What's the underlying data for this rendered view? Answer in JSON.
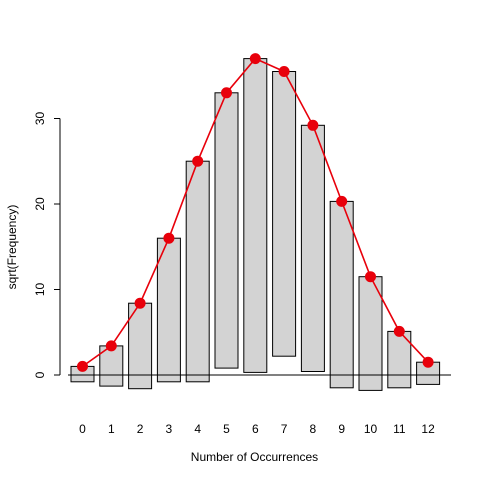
{
  "chart_data": {
    "type": "bar",
    "subtype": "hanging rootogram",
    "title": "",
    "xlabel": "Number of Occurrences",
    "ylabel": "sqrt(Frequency)",
    "categories": [
      "0",
      "1",
      "2",
      "3",
      "4",
      "5",
      "6",
      "7",
      "8",
      "9",
      "10",
      "11",
      "12"
    ],
    "y_ticks": [
      "0",
      "10",
      "20",
      "30"
    ],
    "ylim": [
      -2.5,
      37.5
    ],
    "series": [
      {
        "role": "observed-bars",
        "values": [
          1.0,
          3.4,
          8.4,
          16.0,
          25.0,
          33.0,
          37.0,
          35.5,
          29.2,
          20.3,
          11.5,
          5.1,
          1.5
        ],
        "bar_bottoms": [
          -0.8,
          -1.3,
          -1.6,
          -0.8,
          -0.8,
          0.8,
          0.3,
          2.2,
          0.4,
          -1.5,
          -1.8,
          -1.5,
          -1.1
        ]
      },
      {
        "role": "expected-line",
        "values": [
          1.0,
          3.4,
          8.4,
          16.0,
          25.0,
          33.0,
          37.0,
          35.5,
          29.2,
          20.3,
          11.5,
          5.1,
          1.5
        ]
      }
    ],
    "colors": {
      "bar_fill": "#d3d3d3",
      "bar_stroke": "#000000",
      "line": "#e8000b",
      "points": "#e8000b"
    },
    "grid": false,
    "legend": "none",
    "reference_line_y": 0
  }
}
